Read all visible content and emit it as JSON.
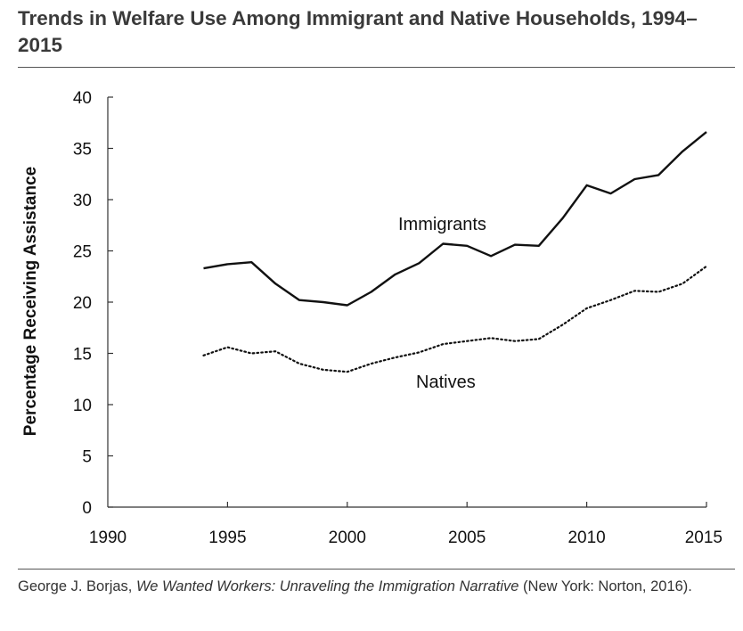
{
  "title": "Trends in Welfare Use Among Immigrant and Native Households, 1994–2015",
  "source": {
    "author": "George J. Borjas, ",
    "book": "We Wanted Workers: Unraveling the Immigration Narrative",
    "publisher": " (New York: Norton, 2016)."
  },
  "chart_data": {
    "type": "line",
    "title": "Trends in Welfare Use Among Immigrant and Native Households, 1994–2015",
    "xlabel": "",
    "ylabel": "Percentage Receiving Assistance",
    "xlim": [
      1990,
      2015
    ],
    "ylim": [
      0,
      40
    ],
    "xticks": [
      1990,
      1995,
      2000,
      2005,
      2010,
      2015
    ],
    "yticks": [
      0,
      5,
      10,
      15,
      20,
      25,
      30,
      35,
      40
    ],
    "grid": false,
    "legend": "none",
    "x": [
      1994,
      1995,
      1996,
      1997,
      1998,
      1999,
      2000,
      2001,
      2002,
      2003,
      2004,
      2005,
      2006,
      2007,
      2008,
      2009,
      2010,
      2011,
      2012,
      2013,
      2014,
      2015
    ],
    "series": [
      {
        "name": "Immigrants",
        "style": "solid",
        "values": [
          23.3,
          23.7,
          23.9,
          21.8,
          20.2,
          20.0,
          19.7,
          21.0,
          22.7,
          23.8,
          25.7,
          25.5,
          24.5,
          25.6,
          25.5,
          28.2,
          31.4,
          30.6,
          32.0,
          32.4,
          34.7,
          36.6
        ]
      },
      {
        "name": "Natives",
        "style": "dotted",
        "values": [
          14.8,
          15.6,
          15.0,
          15.2,
          14.0,
          13.4,
          13.2,
          14.0,
          14.6,
          15.1,
          15.9,
          16.2,
          16.5,
          16.2,
          16.4,
          17.8,
          19.4,
          20.2,
          21.1,
          21.0,
          21.8,
          23.5
        ]
      }
    ]
  }
}
